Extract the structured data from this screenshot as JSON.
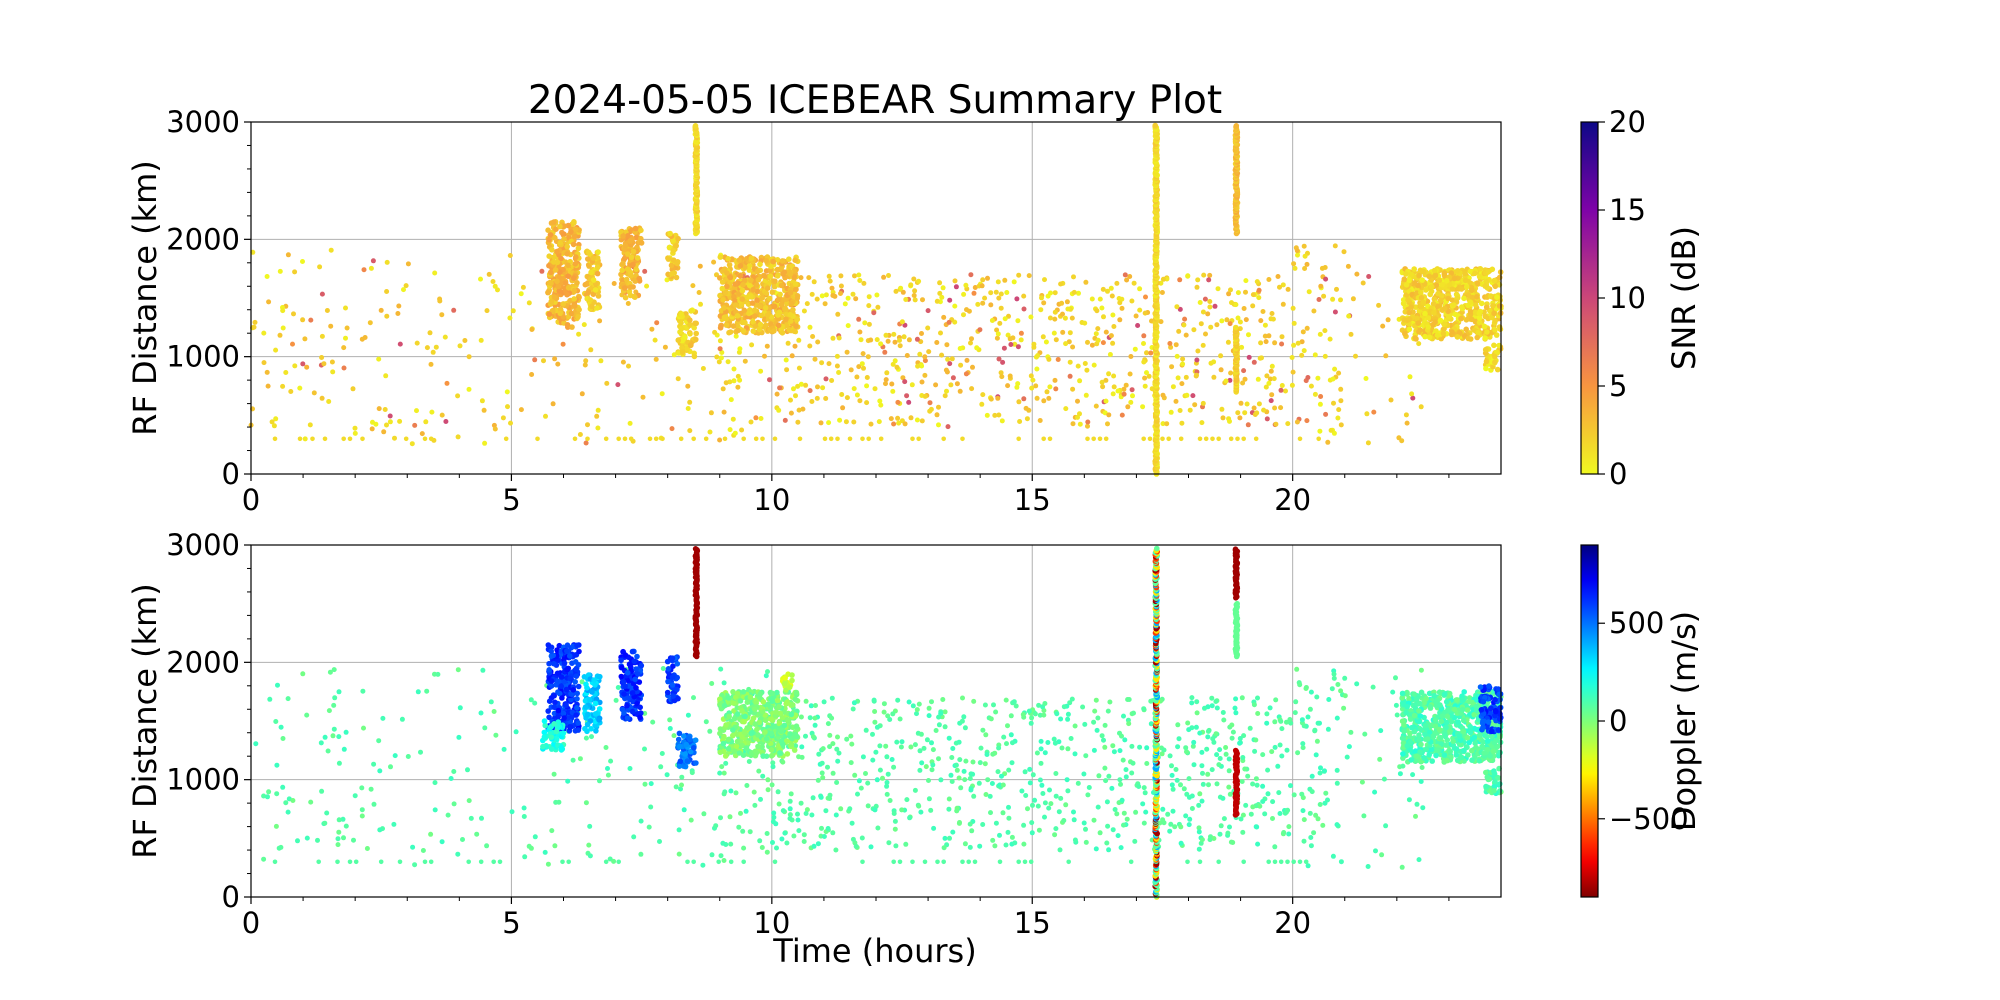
{
  "figure": {
    "title": "2024-05-05 ICEBEAR Summary Plot",
    "xlabel": "Time (hours)"
  },
  "chart_data": [
    {
      "type": "scatter",
      "panel": "top",
      "ylabel": "RF Distance (km)",
      "xlim": [
        0,
        24
      ],
      "ylim": [
        0,
        3000
      ],
      "xticks": [
        "0",
        "5",
        "10",
        "15",
        "20"
      ],
      "yticks": [
        "0",
        "1000",
        "2000",
        "3000"
      ],
      "grid": true,
      "color_by": "SNR",
      "colorbar": {
        "label": "SNR (dB)",
        "range": [
          0,
          20
        ],
        "ticks": [
          "0",
          "5",
          "10",
          "15",
          "20"
        ],
        "colormap": "plasma_r"
      },
      "features": [
        {
          "kind": "column",
          "x": 8.55,
          "y0": 2050,
          "y1": 2970,
          "value": 1.5
        },
        {
          "kind": "column",
          "x": 17.38,
          "y0": 0,
          "y1": 2970,
          "value": 1.5
        },
        {
          "kind": "column",
          "x": 18.92,
          "y0": 2050,
          "y1": 2970,
          "value": 3
        },
        {
          "kind": "column",
          "x": 18.92,
          "y0": 700,
          "y1": 1250,
          "value": 2
        },
        {
          "kind": "cluster",
          "x0": 5.7,
          "x1": 6.3,
          "y0": 1250,
          "y1": 2150,
          "value": 3
        },
        {
          "kind": "cluster",
          "x0": 6.4,
          "x1": 6.7,
          "y0": 1400,
          "y1": 1900,
          "value": 2
        },
        {
          "kind": "cluster",
          "x0": 7.1,
          "x1": 7.5,
          "y0": 1500,
          "y1": 2100,
          "value": 3
        },
        {
          "kind": "cluster",
          "x0": 8.0,
          "x1": 8.2,
          "y0": 1650,
          "y1": 2050,
          "value": 2
        },
        {
          "kind": "cluster",
          "x0": 8.2,
          "x1": 8.55,
          "y0": 1000,
          "y1": 1400,
          "value": 1.5
        },
        {
          "kind": "cluster",
          "x0": 9.0,
          "x1": 10.5,
          "y0": 1200,
          "y1": 1850,
          "value": 2.5
        },
        {
          "kind": "cluster",
          "x0": 22.1,
          "x1": 24.0,
          "y0": 1150,
          "y1": 1750,
          "value": 1.5
        },
        {
          "kind": "cluster",
          "x0": 23.7,
          "x1": 24.0,
          "y0": 880,
          "y1": 1100,
          "value": 1
        }
      ],
      "scatter_region": {
        "x0": 0,
        "x1": 22.5,
        "y0": 250,
        "y1": 1950,
        "count": 1500,
        "value": 2
      }
    },
    {
      "type": "scatter",
      "panel": "bottom",
      "xlabel": "Time (hours)",
      "ylabel": "RF Distance (km)",
      "xlim": [
        0,
        24
      ],
      "ylim": [
        0,
        3000
      ],
      "xticks": [
        "0",
        "5",
        "10",
        "15",
        "20"
      ],
      "yticks": [
        "0",
        "1000",
        "2000",
        "3000"
      ],
      "grid": true,
      "color_by": "Doppler",
      "colorbar": {
        "label": "Doppler (m/s)",
        "range": [
          -900,
          900
        ],
        "ticks": [
          "−500",
          "0",
          "500"
        ],
        "tick_values": [
          -500,
          0,
          500
        ],
        "colormap": "jet_r"
      },
      "features": [
        {
          "kind": "column",
          "x": 8.55,
          "y0": 2050,
          "y1": 2970,
          "value": -850
        },
        {
          "kind": "column",
          "x": 17.38,
          "y0": 0,
          "y1": 2970,
          "value": "mixed"
        },
        {
          "kind": "column",
          "x": 18.92,
          "y0": 2550,
          "y1": 2970,
          "value": -850
        },
        {
          "kind": "column",
          "x": 18.92,
          "y0": 2050,
          "y1": 2500,
          "value": 50
        },
        {
          "kind": "column",
          "x": 18.92,
          "y0": 700,
          "y1": 1250,
          "value": -800
        },
        {
          "kind": "cluster",
          "x0": 5.7,
          "x1": 6.3,
          "y0": 1400,
          "y1": 2150,
          "value": 620
        },
        {
          "kind": "cluster",
          "x0": 5.6,
          "x1": 6.0,
          "y0": 1250,
          "y1": 1500,
          "value": 200
        },
        {
          "kind": "cluster",
          "x0": 6.4,
          "x1": 6.7,
          "y0": 1400,
          "y1": 1900,
          "value": 350
        },
        {
          "kind": "cluster",
          "x0": 7.1,
          "x1": 7.5,
          "y0": 1500,
          "y1": 2100,
          "value": 620
        },
        {
          "kind": "cluster",
          "x0": 8.0,
          "x1": 8.2,
          "y0": 1650,
          "y1": 2050,
          "value": 600
        },
        {
          "kind": "cluster",
          "x0": 8.2,
          "x1": 8.55,
          "y0": 1100,
          "y1": 1400,
          "value": 500
        },
        {
          "kind": "cluster",
          "x0": 9.0,
          "x1": 10.5,
          "y0": 1200,
          "y1": 1750,
          "value": 0
        },
        {
          "kind": "cluster",
          "x0": 10.2,
          "x1": 10.4,
          "y0": 1750,
          "y1": 1900,
          "value": -150
        },
        {
          "kind": "cluster",
          "x0": 22.1,
          "x1": 24.0,
          "y0": 1150,
          "y1": 1750,
          "value": 100
        },
        {
          "kind": "cluster",
          "x0": 23.6,
          "x1": 24.0,
          "y0": 1400,
          "y1": 1800,
          "value": 600
        },
        {
          "kind": "cluster",
          "x0": 23.7,
          "x1": 24.0,
          "y0": 880,
          "y1": 1100,
          "value": 80
        }
      ],
      "scatter_region": {
        "x0": 0,
        "x1": 22.5,
        "y0": 250,
        "y1": 1950,
        "count": 1500,
        "value": 80
      }
    }
  ]
}
